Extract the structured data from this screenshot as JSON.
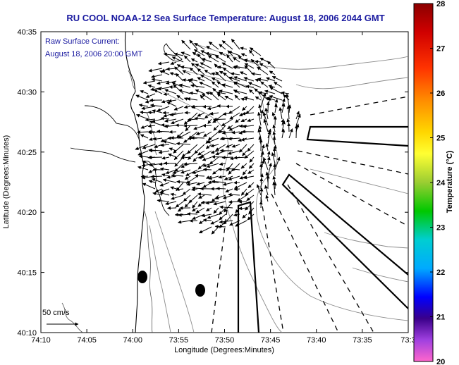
{
  "title": "RU COOL  NOAA-12  Sea Surface Temperature:  August 18, 2006 2044 GMT",
  "annotation": {
    "line1": "Raw Surface Current:",
    "line2": "August 18, 2006 20:00 GMT"
  },
  "scale_label": "50 cm/s",
  "x_axis": {
    "label": "Longitude (Degrees:Minutes)",
    "ticks": [
      "74:10",
      "74:05",
      "74:00",
      "73:55",
      "73:50",
      "73:45",
      "73:40",
      "73:35",
      "73:3"
    ]
  },
  "y_axis": {
    "label": "Latitude (Degrees:Minutes)",
    "ticks": [
      "40:35",
      "40:30",
      "40:25",
      "40:20",
      "40:15",
      "40:10"
    ]
  },
  "colorbar": {
    "label": "Temperature (°C)",
    "ticks": [
      "28",
      "27",
      "26",
      "25",
      "24",
      "23",
      "22",
      "21",
      "20"
    ],
    "range": [
      20,
      28
    ],
    "colors": [
      "#8b0000",
      "#d40000",
      "#ff4500",
      "#ff8c00",
      "#ffd700",
      "#ffff00",
      "#9acd32",
      "#00c800",
      "#00ced1",
      "#00bfff",
      "#1e6fff",
      "#0000ff",
      "#4b0082",
      "#8a2be2",
      "#da70d6",
      "#ff66cc"
    ]
  }
}
